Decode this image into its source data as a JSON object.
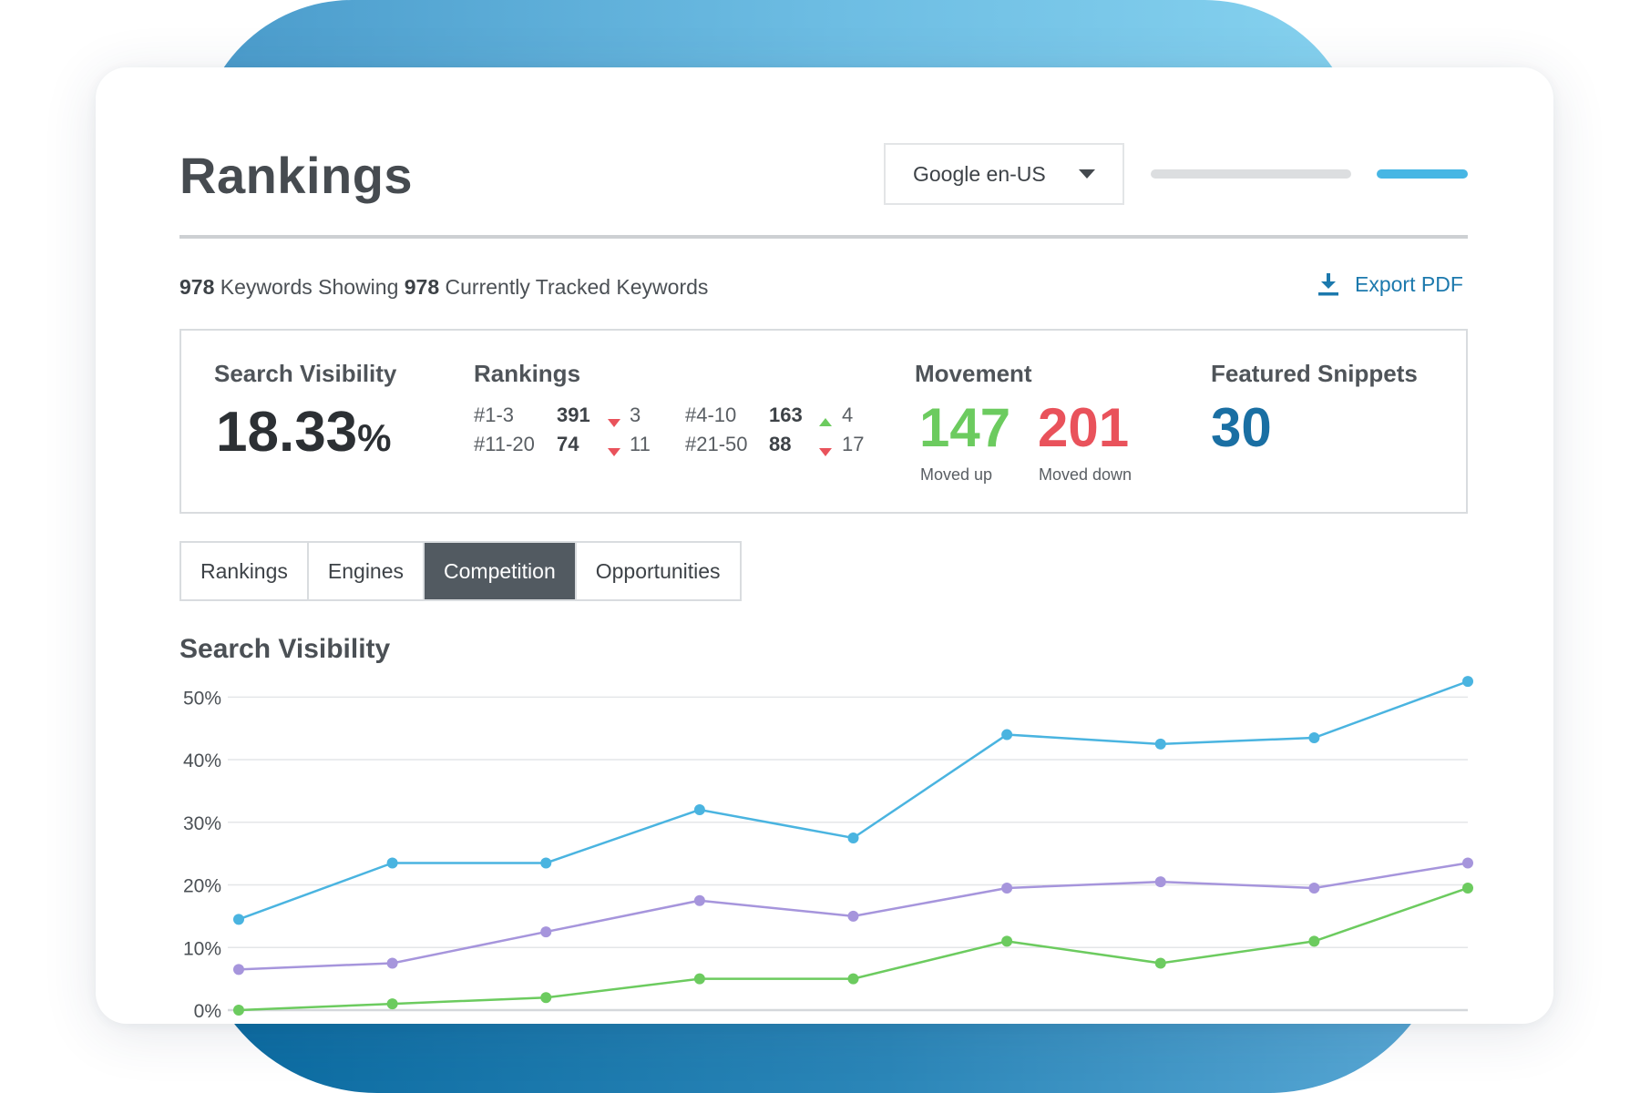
{
  "header": {
    "title": "Rankings",
    "engine_select": {
      "value": "Google en-US"
    }
  },
  "summary": {
    "count_total": "978",
    "text_mid": " Keywords Showing ",
    "count_tracked": "978",
    "text_end": " Currently Tracked Keywords",
    "export_label": "Export PDF"
  },
  "stats": {
    "search_visibility": {
      "label": "Search Visibility",
      "value": "18.33",
      "unit": "%"
    },
    "rankings": {
      "label": "Rankings",
      "rows": [
        {
          "range": "#1-3",
          "count": "391",
          "direction": "down",
          "change": "3"
        },
        {
          "range": "#4-10",
          "count": "163",
          "direction": "up",
          "change": "4"
        },
        {
          "range": "#11-20",
          "count": "74",
          "direction": "down",
          "change": "11"
        },
        {
          "range": "#21-50",
          "count": "88",
          "direction": "down",
          "change": "17"
        }
      ]
    },
    "movement": {
      "label": "Movement",
      "up": {
        "value": "147",
        "label": "Moved up"
      },
      "down": {
        "value": "201",
        "label": "Moved down"
      }
    },
    "featured_snippets": {
      "label": "Featured Snippets",
      "value": "30"
    }
  },
  "tabs": [
    {
      "label": "Rankings",
      "active": false
    },
    {
      "label": "Engines",
      "active": false
    },
    {
      "label": "Competition",
      "active": true
    },
    {
      "label": "Opportunities",
      "active": false
    }
  ],
  "colors": {
    "accent_blue": "#1c79ad",
    "positive": "#6ccb5f",
    "negative": "#e9525b",
    "snippet": "#1a6fa3",
    "active_tab": "#525a61"
  },
  "icons": {
    "export": "download-icon",
    "select": "chevron-down-icon"
  },
  "chart_data": {
    "type": "line",
    "title": "Search Visibility",
    "xlabel": "",
    "ylabel": "",
    "y_ticks": [
      "0%",
      "10%",
      "20%",
      "30%",
      "40%",
      "50%"
    ],
    "ylim": [
      0,
      50
    ],
    "grid": true,
    "legend": "none",
    "x": [
      0,
      1,
      2,
      3,
      4,
      5,
      6,
      7,
      8
    ],
    "series": [
      {
        "color": "#4ab4e0",
        "values": [
          14.5,
          23.5,
          23.5,
          32,
          27.5,
          44,
          42.5,
          43.5,
          52.5
        ]
      },
      {
        "color": "#a695dc",
        "values": [
          6.5,
          7.5,
          12.5,
          17.5,
          15,
          19.5,
          20.5,
          19.5,
          23.5
        ]
      },
      {
        "color": "#6ccb5f",
        "values": [
          0,
          1,
          2,
          5,
          5,
          11,
          7.5,
          11,
          19.5
        ]
      }
    ]
  }
}
